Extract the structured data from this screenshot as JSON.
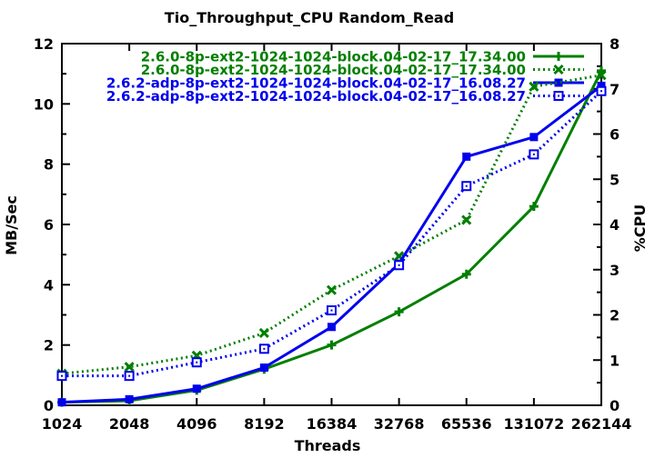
{
  "chart_data": {
    "type": "line",
    "title": "Tio_Throughput_CPU Random_Read",
    "xlabel": "Threads",
    "ylabel": "MB/Sec",
    "y2label": "%CPU",
    "x_scale": "log2-category",
    "categories": [
      "1024",
      "2048",
      "4096",
      "8192",
      "16384",
      "32768",
      "65536",
      "131072",
      "262144"
    ],
    "ylim": [
      0,
      12
    ],
    "y2lim": [
      0,
      8
    ],
    "yticks": [
      0,
      2,
      4,
      6,
      8,
      10,
      12
    ],
    "y2ticks": [
      0,
      1,
      2,
      3,
      4,
      5,
      6,
      7,
      8
    ],
    "grid": false,
    "legend_position": "top-right-inside",
    "series": [
      {
        "name": "2.6.0-8p-ext2-1024-1024-block.04-02-17_17.34.00",
        "color": "#007f00",
        "axis": "left",
        "unit": "MB/Sec",
        "line_style": "solid",
        "marker": "plus",
        "values": [
          0.1,
          0.15,
          0.5,
          1.2,
          2.0,
          3.1,
          4.35,
          6.6,
          11.1
        ]
      },
      {
        "name": "2.6.0-8p-ext2-1024-1024-block.04-02-17_17.34.00",
        "color": "#007f00",
        "axis": "right",
        "unit": "%CPU",
        "line_style": "dotted",
        "marker": "cross",
        "values": [
          0.7,
          0.85,
          1.1,
          1.6,
          2.55,
          3.3,
          4.1,
          7.05,
          7.3
        ]
      },
      {
        "name": "2.6.2-adp-8p-ext2-1024-1024-block.04-02-17_16.08.27",
        "color": "#0000ee",
        "axis": "left",
        "unit": "MB/Sec",
        "line_style": "solid",
        "marker": "square-filled",
        "values": [
          0.1,
          0.2,
          0.55,
          1.25,
          2.6,
          4.7,
          8.25,
          8.9,
          10.6
        ]
      },
      {
        "name": "2.6.2-adp-8p-ext2-1024-1024-block.04-02-17_16.08.27",
        "color": "#0000ee",
        "axis": "right",
        "unit": "%CPU",
        "line_style": "dotted",
        "marker": "square-open",
        "values": [
          0.65,
          0.65,
          0.95,
          1.25,
          2.1,
          3.1,
          4.85,
          5.55,
          6.95
        ]
      }
    ]
  }
}
